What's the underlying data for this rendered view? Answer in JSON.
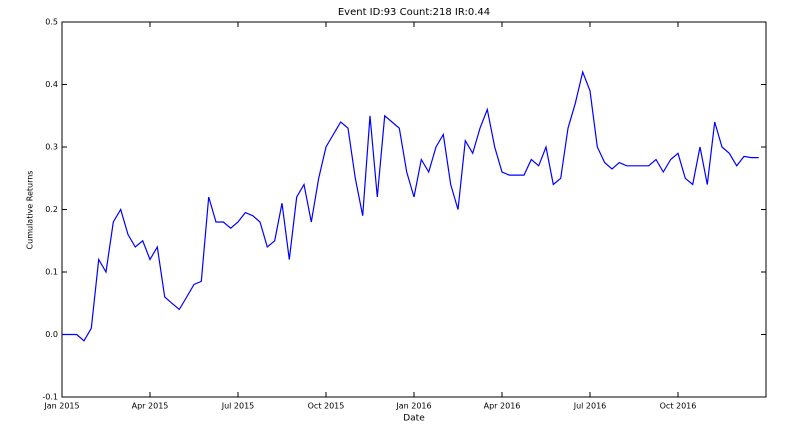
{
  "chart_data": {
    "type": "line",
    "title": "Event ID:93    Count:218    IR:0.44",
    "x_label": "Date",
    "y_label": "Cumulative Returns",
    "x": [
      "2015-01",
      "2015-01",
      "2015-01",
      "2015-01",
      "2015-02",
      "2015-02",
      "2015-02",
      "2015-02",
      "2015-03",
      "2015-03",
      "2015-03",
      "2015-03",
      "2015-04",
      "2015-04",
      "2015-04",
      "2015-04",
      "2015-05",
      "2015-05",
      "2015-05",
      "2015-05",
      "2015-06",
      "2015-06",
      "2015-06",
      "2015-06",
      "2015-07",
      "2015-07",
      "2015-07",
      "2015-07",
      "2015-08",
      "2015-08",
      "2015-08",
      "2015-08",
      "2015-09",
      "2015-09",
      "2015-09",
      "2015-09",
      "2015-10",
      "2015-10",
      "2015-10",
      "2015-10",
      "2015-11",
      "2015-11",
      "2015-11",
      "2015-11",
      "2015-12",
      "2015-12",
      "2015-12",
      "2015-12",
      "2016-01",
      "2016-01",
      "2016-01",
      "2016-01",
      "2016-02",
      "2016-02",
      "2016-02",
      "2016-02",
      "2016-03",
      "2016-03",
      "2016-03",
      "2016-03",
      "2016-04",
      "2016-04",
      "2016-04",
      "2016-04",
      "2016-05",
      "2016-05",
      "2016-05",
      "2016-05",
      "2016-06",
      "2016-06",
      "2016-06",
      "2016-06",
      "2016-07",
      "2016-07",
      "2016-07",
      "2016-07",
      "2016-08",
      "2016-08",
      "2016-08",
      "2016-08",
      "2016-09",
      "2016-09",
      "2016-09",
      "2016-09",
      "2016-10",
      "2016-10",
      "2016-10",
      "2016-10",
      "2016-11",
      "2016-11",
      "2016-11",
      "2016-11",
      "2016-12",
      "2016-12",
      "2016-12",
      "2016-12"
    ],
    "series": [
      {
        "color": "#0000ff",
        "values": [
          0,
          0,
          0,
          -0.01,
          0.01,
          0.12,
          0.1,
          0.18,
          0.2,
          0.16,
          0.14,
          0.15,
          0.12,
          0.14,
          0.06,
          0.05,
          0.04,
          0.06,
          0.08,
          0.085,
          0.22,
          0.18,
          0.18,
          0.17,
          0.18,
          0.195,
          0.19,
          0.18,
          0.14,
          0.15,
          0.21,
          0.12,
          0.22,
          0.24,
          0.18,
          0.25,
          0.3,
          0.32,
          0.34,
          0.33,
          0.25,
          0.19,
          0.35,
          0.22,
          0.35,
          0.34,
          0.33,
          0.26,
          0.22,
          0.28,
          0.26,
          0.3,
          0.32,
          0.24,
          0.2,
          0.31,
          0.29,
          0.33,
          0.36,
          0.3,
          0.26,
          0.255,
          0.255,
          0.255,
          0.28,
          0.27,
          0.3,
          0.24,
          0.25,
          0.33,
          0.37,
          0.42,
          0.39,
          0.3,
          0.275,
          0.265,
          0.275,
          0.27,
          0.27,
          0.27,
          0.27,
          0.28,
          0.26,
          0.28,
          0.29,
          0.25,
          0.24,
          0.3,
          0.24,
          0.34,
          0.3,
          0.29,
          0.27,
          0.285,
          0.283,
          0.283
        ]
      }
    ],
    "xlim": [
      "2015-01",
      "2016-12"
    ],
    "xticks": [
      {
        "value": "2015-01",
        "label": "Jan 2015"
      },
      {
        "value": "2015-04",
        "label": "Apr 2015"
      },
      {
        "value": "2015-07",
        "label": "Jul 2015"
      },
      {
        "value": "2015-10",
        "label": "Oct 2015"
      },
      {
        "value": "2016-01",
        "label": "Jan 2016"
      },
      {
        "value": "2016-04",
        "label": "Apr 2016"
      },
      {
        "value": "2016-07",
        "label": "Jul 2016"
      },
      {
        "value": "2016-10",
        "label": "Oct 2016"
      }
    ],
    "ylim": [
      -0.1,
      0.5
    ],
    "yticks": [
      -0.1,
      {
        "value": 0,
        "label": "0.0"
      },
      0.1,
      0.2,
      0.3,
      0.4,
      0.5
    ]
  }
}
